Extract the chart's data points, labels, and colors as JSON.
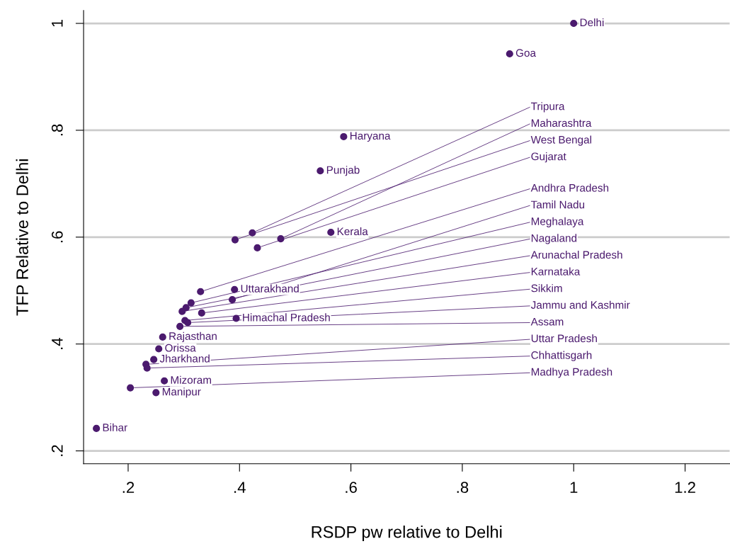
{
  "chart_data": {
    "type": "scatter",
    "xlabel": "RSDP pw relative to Delhi",
    "ylabel": "TFP Relative to Delhi",
    "xlim": [
      0.12,
      1.28
    ],
    "ylim": [
      0.176,
      1.024
    ],
    "xticks": [
      {
        "value": 0.2,
        "label": ".2"
      },
      {
        "value": 0.4,
        "label": ".4"
      },
      {
        "value": 0.6,
        "label": ".6"
      },
      {
        "value": 0.8,
        "label": ".8"
      },
      1,
      {
        "value": 1.2,
        "label": "1.2"
      }
    ],
    "yticks": [
      {
        "value": 0.2,
        "label": ".2"
      },
      {
        "value": 0.4,
        "label": ".4"
      },
      {
        "value": 0.6,
        "label": ".6"
      },
      {
        "value": 0.8,
        "label": ".8"
      },
      1
    ],
    "grid": "y",
    "marker": "circle",
    "legend": false,
    "series": [
      {
        "color": "#4b1a6e",
        "x": [
          1,
          0.885,
          0.587,
          0.545,
          0.564,
          0.423,
          0.392,
          0.474,
          0.432,
          0.33,
          0.391,
          0.387,
          0.313,
          0.304,
          0.297,
          0.332,
          0.394,
          0.302,
          0.307,
          0.293,
          0.262,
          0.255,
          0.246,
          0.232,
          0.234,
          0.265,
          0.204,
          0.25,
          0.143
        ],
        "values": [
          1,
          0.943,
          0.788,
          0.724,
          0.609,
          0.608,
          0.595,
          0.597,
          0.58,
          0.498,
          0.502,
          0.483,
          0.477,
          0.468,
          0.461,
          0.458,
          0.448,
          0.444,
          0.44,
          0.433,
          0.413,
          0.391,
          0.371,
          0.362,
          0.355,
          0.331,
          0.318,
          0.309,
          0.242
        ]
      }
    ],
    "annotations": [
      {
        "text": "Delhi",
        "x": 1,
        "y": 1
      },
      {
        "text": "Goa",
        "x": 0.885,
        "y": 0.943
      },
      {
        "text": "Haryana",
        "x": 0.587,
        "y": 0.788
      },
      {
        "text": "Punjab",
        "x": 0.545,
        "y": 0.724
      },
      {
        "text": "Kerala",
        "x": 0.564,
        "y": 0.609
      },
      {
        "text": "Tripura",
        "x": 0.423,
        "y": 0.608
      },
      {
        "text": "West Bengal",
        "x": 0.392,
        "y": 0.595
      },
      {
        "text": "Maharashtra",
        "x": 0.474,
        "y": 0.597
      },
      {
        "text": "Gujarat",
        "x": 0.432,
        "y": 0.58
      },
      {
        "text": "Andhra Pradesh",
        "x": 0.33,
        "y": 0.498
      },
      {
        "text": "Uttarakhand",
        "x": 0.391,
        "y": 0.502
      },
      {
        "text": "Tamil Nadu",
        "x": 0.387,
        "y": 0.483
      },
      {
        "text": "Meghalaya",
        "x": 0.313,
        "y": 0.477
      },
      {
        "text": "Nagaland",
        "x": 0.304,
        "y": 0.468
      },
      {
        "text": "Arunachal Pradesh",
        "x": 0.297,
        "y": 0.461
      },
      {
        "text": "Karnataka",
        "x": 0.332,
        "y": 0.458
      },
      {
        "text": "Himachal Pradesh",
        "x": 0.394,
        "y": 0.448
      },
      {
        "text": "Sikkim",
        "x": 0.302,
        "y": 0.444
      },
      {
        "text": "Jammu and Kashmir",
        "x": 0.307,
        "y": 0.44
      },
      {
        "text": "Assam",
        "x": 0.293,
        "y": 0.433
      },
      {
        "text": "Rajasthan",
        "x": 0.262,
        "y": 0.413
      },
      {
        "text": "Orissa",
        "x": 0.255,
        "y": 0.391
      },
      {
        "text": "Jharkhand",
        "x": 0.246,
        "y": 0.371
      },
      {
        "text": "Uttar Pradesh",
        "x": 0.232,
        "y": 0.362
      },
      {
        "text": "Chhattisgarh",
        "x": 0.234,
        "y": 0.355
      },
      {
        "text": "Mizoram",
        "x": 0.265,
        "y": 0.331
      },
      {
        "text": "Madhya Pradesh",
        "x": 0.204,
        "y": 0.318
      },
      {
        "text": "Manipur",
        "x": 0.25,
        "y": 0.309
      },
      {
        "text": "Bihar",
        "x": 0.143,
        "y": 0.242
      }
    ]
  }
}
